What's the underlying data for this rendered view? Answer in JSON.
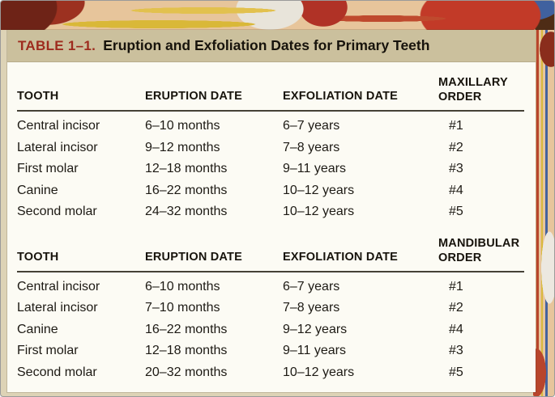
{
  "table": {
    "title_label": "TABLE 1–1.",
    "title_text": "Eruption and Exfoliation Dates for Primary Teeth"
  },
  "colors": {
    "title_label_red": "#9e2b1e",
    "title_bar_tan": "#cbc09d",
    "table_body_bg": "#fcfbf4",
    "header_rule": "#454136"
  },
  "sections": [
    {
      "order_group": "MAXILLARY",
      "columns": [
        "TOOTH",
        "ERUPTION DATE",
        "EXFOLIATION DATE",
        "ORDER"
      ],
      "rows": [
        {
          "tooth": "Central incisor",
          "eruption": "6–10 months",
          "exfoliation": "6–7 years",
          "order": "#1"
        },
        {
          "tooth": "Lateral incisor",
          "eruption": "9–12 months",
          "exfoliation": "7–8 years",
          "order": "#2"
        },
        {
          "tooth": "First molar",
          "eruption": "12–18 months",
          "exfoliation": "9–11 years",
          "order": "#3"
        },
        {
          "tooth": "Canine",
          "eruption": "16–22 months",
          "exfoliation": "10–12 years",
          "order": "#4"
        },
        {
          "tooth": "Second molar",
          "eruption": "24–32 months",
          "exfoliation": "10–12 years",
          "order": "#5"
        }
      ]
    },
    {
      "order_group": "MANDIBULAR",
      "columns": [
        "TOOTH",
        "ERUPTION DATE",
        "EXFOLIATION DATE",
        "ORDER"
      ],
      "rows": [
        {
          "tooth": "Central incisor",
          "eruption": "6–10 months",
          "exfoliation": "6–7 years",
          "order": "#1"
        },
        {
          "tooth": "Lateral incisor",
          "eruption": "7–10 months",
          "exfoliation": "7–8 years",
          "order": "#2"
        },
        {
          "tooth": "Canine",
          "eruption": "16–22 months",
          "exfoliation": "9–12 years",
          "order": "#4"
        },
        {
          "tooth": "First molar",
          "eruption": "12–18 months",
          "exfoliation": "9–11 years",
          "order": "#3"
        },
        {
          "tooth": "Second molar",
          "eruption": "20–32 months",
          "exfoliation": "10–12 years",
          "order": "#5"
        }
      ]
    }
  ]
}
